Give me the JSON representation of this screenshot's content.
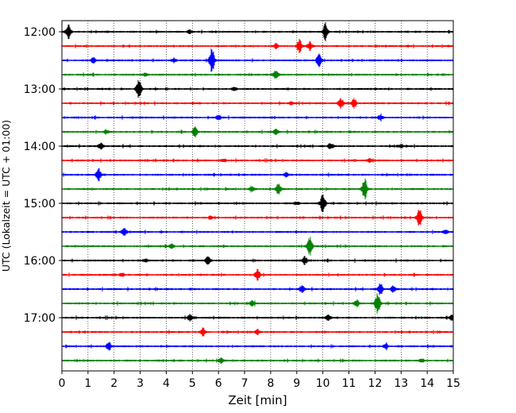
{
  "chart_data": {
    "type": "line",
    "title": "",
    "xlabel": "Zeit  [min]",
    "ylabel": "UTC (Lokalzeit = UTC + 01:00)",
    "xlim": [
      0,
      15
    ],
    "x_ticks": [
      "0",
      "1",
      "2",
      "3",
      "4",
      "5",
      "6",
      "7",
      "8",
      "9",
      "10",
      "11",
      "12",
      "13",
      "14",
      "15"
    ],
    "y_ticks": [
      "12:00",
      "13:00",
      "14:00",
      "15:00",
      "16:00",
      "17:00"
    ],
    "grid": "vertical dotted lines at each minute",
    "colors": [
      "#000000",
      "#ff0000",
      "#0000ff",
      "#008000"
    ],
    "series": [
      {
        "start": "12:00",
        "color": "#000000",
        "events": [
          [
            0.25,
            9
          ],
          [
            10.1,
            11
          ],
          [
            4.9,
            2
          ]
        ]
      },
      {
        "start": "12:15",
        "color": "#ff0000",
        "events": [
          [
            9.1,
            8
          ],
          [
            9.5,
            5
          ],
          [
            8.2,
            3
          ]
        ]
      },
      {
        "start": "12:30",
        "color": "#0000ff",
        "events": [
          [
            5.75,
            16
          ],
          [
            9.85,
            8
          ],
          [
            4.3,
            3
          ],
          [
            1.2,
            3
          ]
        ]
      },
      {
        "start": "12:45",
        "color": "#008000",
        "events": [
          [
            8.2,
            6
          ],
          [
            3.2,
            2
          ]
        ]
      },
      {
        "start": "13:00",
        "color": "#000000",
        "events": [
          [
            2.95,
            13
          ],
          [
            6.6,
            2
          ]
        ]
      },
      {
        "start": "13:15",
        "color": "#ff0000",
        "events": [
          [
            10.7,
            6
          ],
          [
            11.2,
            6
          ],
          [
            8.8,
            2
          ]
        ]
      },
      {
        "start": "13:30",
        "color": "#0000ff",
        "events": [
          [
            6.0,
            3
          ],
          [
            12.2,
            3
          ]
        ]
      },
      {
        "start": "13:45",
        "color": "#008000",
        "events": [
          [
            5.1,
            6
          ],
          [
            8.2,
            3
          ],
          [
            1.7,
            2
          ]
        ]
      },
      {
        "start": "14:00",
        "color": "#000000",
        "events": [
          [
            1.5,
            4
          ],
          [
            10.3,
            4
          ],
          [
            13.0,
            2
          ]
        ]
      },
      {
        "start": "14:15",
        "color": "#ff0000",
        "events": [
          [
            6.2,
            2
          ],
          [
            11.8,
            2
          ]
        ]
      },
      {
        "start": "14:30",
        "color": "#0000ff",
        "events": [
          [
            1.4,
            8
          ],
          [
            8.6,
            3
          ]
        ]
      },
      {
        "start": "14:45",
        "color": "#008000",
        "events": [
          [
            11.6,
            14
          ],
          [
            8.3,
            7
          ],
          [
            7.3,
            3
          ]
        ]
      },
      {
        "start": "15:00",
        "color": "#000000",
        "events": [
          [
            10.0,
            12
          ],
          [
            9.0,
            2
          ]
        ]
      },
      {
        "start": "15:15",
        "color": "#ff0000",
        "events": [
          [
            13.7,
            14
          ],
          [
            5.7,
            2
          ]
        ]
      },
      {
        "start": "15:30",
        "color": "#0000ff",
        "events": [
          [
            2.4,
            4
          ],
          [
            14.7,
            2
          ]
        ]
      },
      {
        "start": "15:45",
        "color": "#008000",
        "events": [
          [
            9.5,
            12
          ],
          [
            4.2,
            3
          ]
        ]
      },
      {
        "start": "16:00",
        "color": "#000000",
        "events": [
          [
            5.6,
            5
          ],
          [
            9.3,
            5
          ],
          [
            3.2,
            2
          ]
        ]
      },
      {
        "start": "16:15",
        "color": "#ff0000",
        "events": [
          [
            7.5,
            7
          ],
          [
            2.3,
            2
          ]
        ]
      },
      {
        "start": "16:30",
        "color": "#0000ff",
        "events": [
          [
            12.2,
            8
          ],
          [
            9.2,
            4
          ],
          [
            12.7,
            4
          ]
        ]
      },
      {
        "start": "16:45",
        "color": "#008000",
        "events": [
          [
            12.1,
            13
          ],
          [
            11.3,
            4
          ],
          [
            7.3,
            3
          ]
        ]
      },
      {
        "start": "17:00",
        "color": "#000000",
        "events": [
          [
            4.9,
            4
          ],
          [
            10.2,
            4
          ],
          [
            14.95,
            4
          ]
        ]
      },
      {
        "start": "17:15",
        "color": "#ff0000",
        "events": [
          [
            5.4,
            5
          ],
          [
            7.5,
            3
          ]
        ]
      },
      {
        "start": "17:30",
        "color": "#0000ff",
        "events": [
          [
            1.8,
            5
          ],
          [
            12.4,
            3
          ]
        ]
      },
      {
        "start": "17:45",
        "color": "#008000",
        "events": [
          [
            6.1,
            3
          ],
          [
            13.8,
            2
          ]
        ]
      }
    ]
  }
}
